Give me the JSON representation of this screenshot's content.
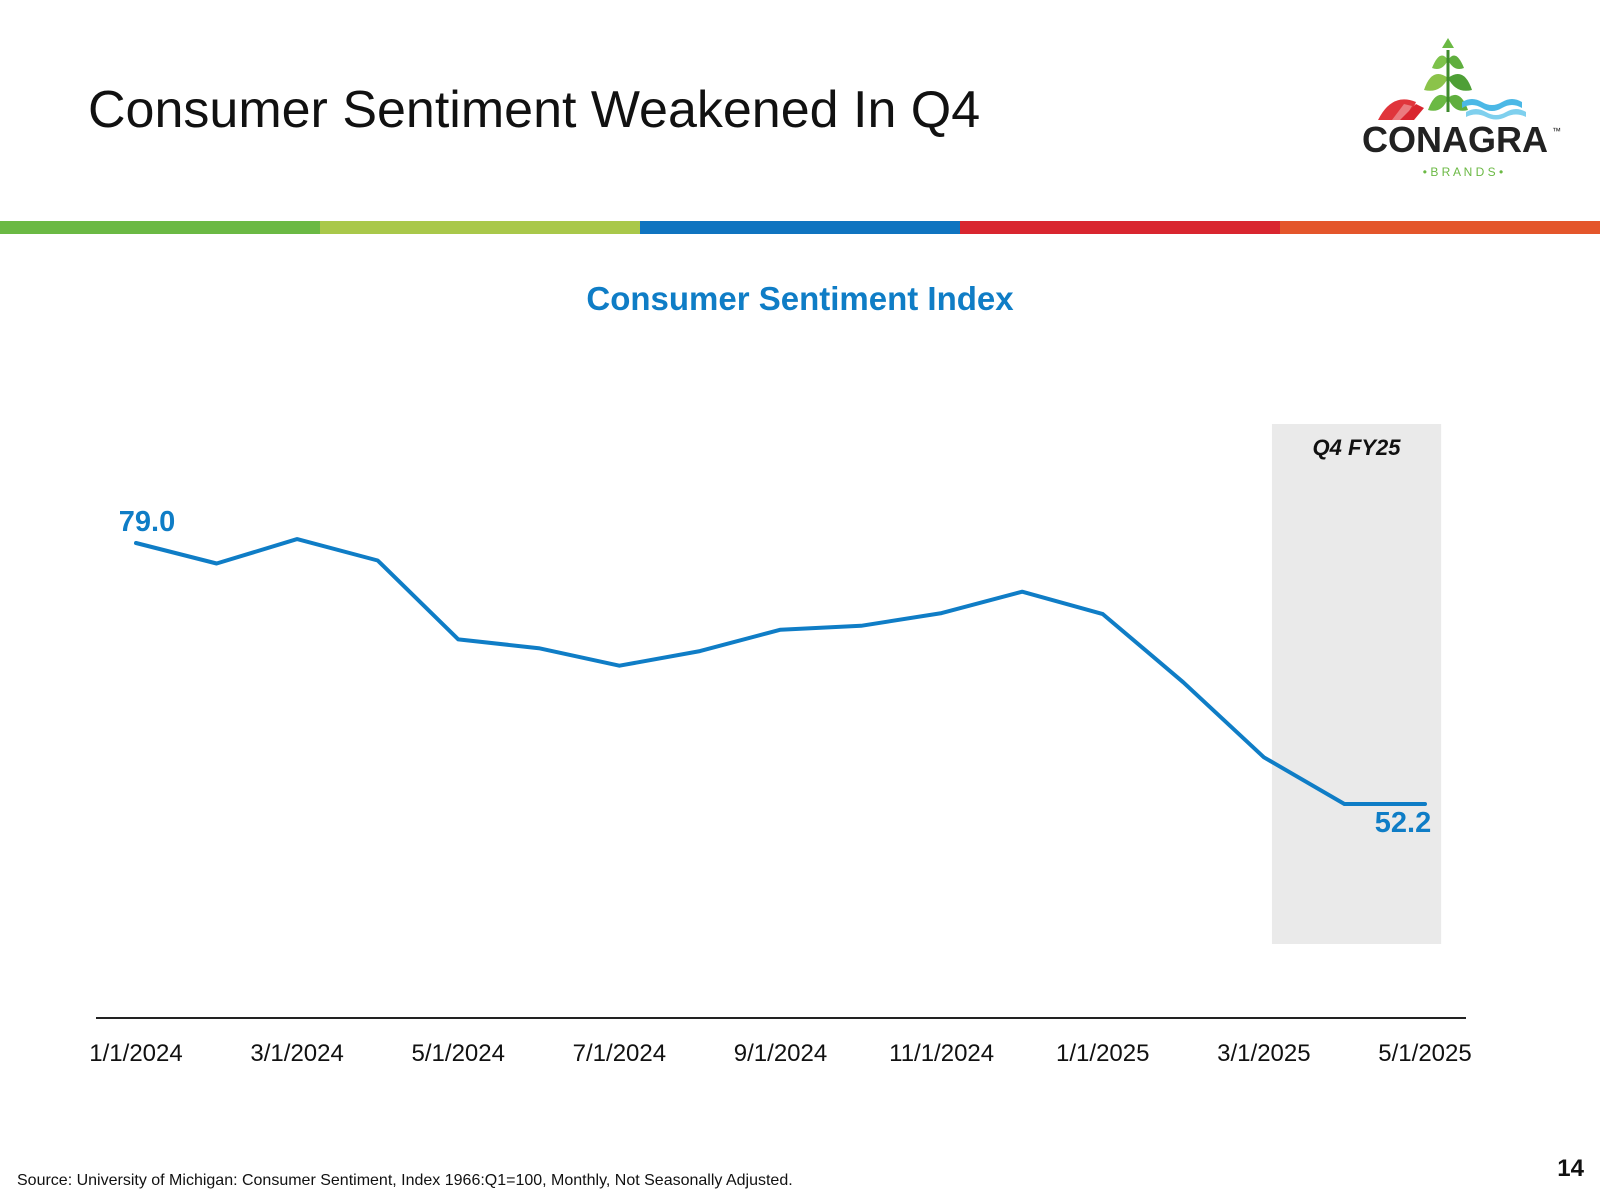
{
  "slide": {
    "title": "Consumer Sentiment Weakened In Q4",
    "source": "Source: University of Michigan: Consumer Sentiment, Index 1966:Q1=100, Monthly, Not Seasonally Adjusted.",
    "page_number": "14"
  },
  "logo": {
    "name": "CONAGRA",
    "trademark": "™",
    "sub": "• B R A N D S •"
  },
  "colors": {
    "accent": "#0F7DC6",
    "stripe": [
      "#6BB944",
      "#A9C84A",
      "#0F74C0",
      "#D9262F",
      "#E4562B"
    ],
    "highlight": "#EAEAEA"
  },
  "chart_data": {
    "type": "line",
    "title": "Consumer Sentiment Index",
    "x": [
      "1/1/2024",
      "2/1/2024",
      "3/1/2024",
      "4/1/2024",
      "5/1/2024",
      "6/1/2024",
      "7/1/2024",
      "8/1/2024",
      "9/1/2024",
      "10/1/2024",
      "11/1/2024",
      "12/1/2024",
      "1/1/2025",
      "2/1/2025",
      "3/1/2025",
      "4/1/2025",
      "5/1/2025"
    ],
    "series": [
      {
        "name": "Consumer Sentiment",
        "values": [
          79.0,
          76.9,
          79.4,
          77.2,
          69.1,
          68.2,
          66.4,
          67.9,
          70.1,
          70.5,
          71.8,
          74.0,
          71.7,
          64.7,
          57.0,
          52.2,
          52.2
        ]
      }
    ],
    "tick_labels": [
      "1/1/2024",
      "3/1/2024",
      "5/1/2024",
      "7/1/2024",
      "9/1/2024",
      "11/1/2024",
      "1/1/2025",
      "3/1/2025",
      "5/1/2025"
    ],
    "data_labels": [
      {
        "index": 0,
        "text": "79.0"
      },
      {
        "index": 16,
        "text": "52.2"
      }
    ],
    "highlight": {
      "label": "Q4 FY25",
      "from_index": 14.1,
      "to_index": 16.2
    },
    "ylim": [
      30,
      85
    ],
    "xlabel": "",
    "ylabel": "",
    "grid": false
  }
}
